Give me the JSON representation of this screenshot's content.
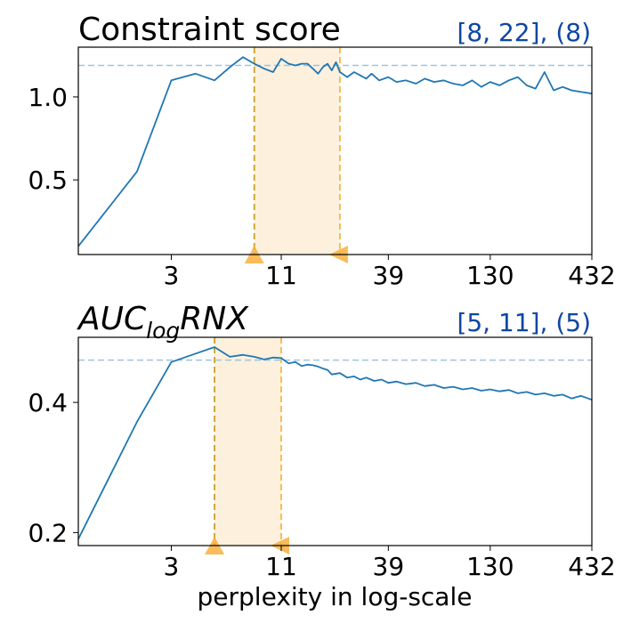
{
  "chart_data": [
    {
      "type": "line",
      "title": "Constraint score",
      "range_text": "[8, 22], (8)",
      "x_scale": "log",
      "xlim": [
        1,
        432
      ],
      "ylim": [
        0.05,
        1.3
      ],
      "x_ticks": [
        3,
        11,
        39,
        130,
        432
      ],
      "x_tick_labels": [
        "3",
        "11",
        "39",
        "130",
        "432"
      ],
      "y_ticks": [
        0.5,
        1.0
      ],
      "y_tick_labels": [
        "0.5",
        "1.0"
      ],
      "best_value_line": 1.19,
      "selected_range": [
        8,
        22
      ],
      "best_perplexity": 8,
      "series": [
        {
          "x": [
            1,
            2,
            3,
            4,
            5,
            6,
            7,
            8,
            9,
            10,
            11,
            12,
            13,
            14,
            15,
            16,
            17,
            18,
            19,
            20,
            21,
            22,
            24,
            26,
            28,
            30,
            32,
            35,
            39,
            43,
            48,
            54,
            60,
            67,
            75,
            84,
            94,
            105,
            117,
            130,
            145,
            162,
            180,
            200,
            222,
            247,
            275,
            306,
            340,
            380,
            432
          ],
          "values": [
            0.1,
            0.55,
            1.1,
            1.14,
            1.1,
            1.18,
            1.24,
            1.2,
            1.17,
            1.15,
            1.23,
            1.2,
            1.19,
            1.2,
            1.2,
            1.17,
            1.14,
            1.18,
            1.2,
            1.16,
            1.21,
            1.15,
            1.12,
            1.15,
            1.13,
            1.11,
            1.14,
            1.1,
            1.12,
            1.09,
            1.1,
            1.08,
            1.11,
            1.09,
            1.1,
            1.08,
            1.07,
            1.1,
            1.06,
            1.09,
            1.07,
            1.1,
            1.12,
            1.07,
            1.05,
            1.15,
            1.04,
            1.06,
            1.04,
            1.03,
            1.02
          ]
        }
      ]
    },
    {
      "type": "line",
      "title": "AUC",
      "title_subscript": "log",
      "title_suffix": "RNX",
      "range_text": "[5, 11], (5)",
      "x_scale": "log",
      "xlim": [
        1,
        432
      ],
      "ylim": [
        0.18,
        0.5
      ],
      "x_ticks": [
        3,
        11,
        39,
        130,
        432
      ],
      "x_tick_labels": [
        "3",
        "11",
        "39",
        "130",
        "432"
      ],
      "y_ticks": [
        0.2,
        0.4
      ],
      "y_tick_labels": [
        "0.2",
        "0.4"
      ],
      "xlabel": "perplexity in log-scale",
      "best_value_line": 0.465,
      "selected_range": [
        5,
        11
      ],
      "best_perplexity": 5,
      "series": [
        {
          "x": [
            1,
            2,
            3,
            4,
            5,
            6,
            7,
            8,
            9,
            10,
            11,
            12,
            13,
            14,
            15,
            16,
            17,
            18,
            19,
            20,
            22,
            24,
            26,
            28,
            30,
            33,
            36,
            39,
            43,
            48,
            54,
            60,
            67,
            75,
            84,
            94,
            105,
            117,
            130,
            145,
            162,
            180,
            200,
            222,
            247,
            275,
            306,
            340,
            380,
            432
          ],
          "values": [
            0.19,
            0.37,
            0.462,
            0.475,
            0.485,
            0.47,
            0.473,
            0.47,
            0.466,
            0.469,
            0.468,
            0.46,
            0.462,
            0.456,
            0.458,
            0.457,
            0.455,
            0.452,
            0.45,
            0.443,
            0.445,
            0.438,
            0.44,
            0.435,
            0.438,
            0.433,
            0.435,
            0.43,
            0.432,
            0.428,
            0.43,
            0.425,
            0.427,
            0.422,
            0.424,
            0.42,
            0.422,
            0.418,
            0.42,
            0.417,
            0.419,
            0.414,
            0.416,
            0.412,
            0.414,
            0.41,
            0.412,
            0.406,
            0.41,
            0.404
          ]
        }
      ]
    }
  ],
  "colors": {
    "line": "#1f77b4",
    "band": "#fdf0dc",
    "dash_left": "#c9a227",
    "dash_right": "#f5b942",
    "marker": "#f5a623",
    "best_line": "#9ec5e0",
    "range_text": "#0d47a1"
  }
}
